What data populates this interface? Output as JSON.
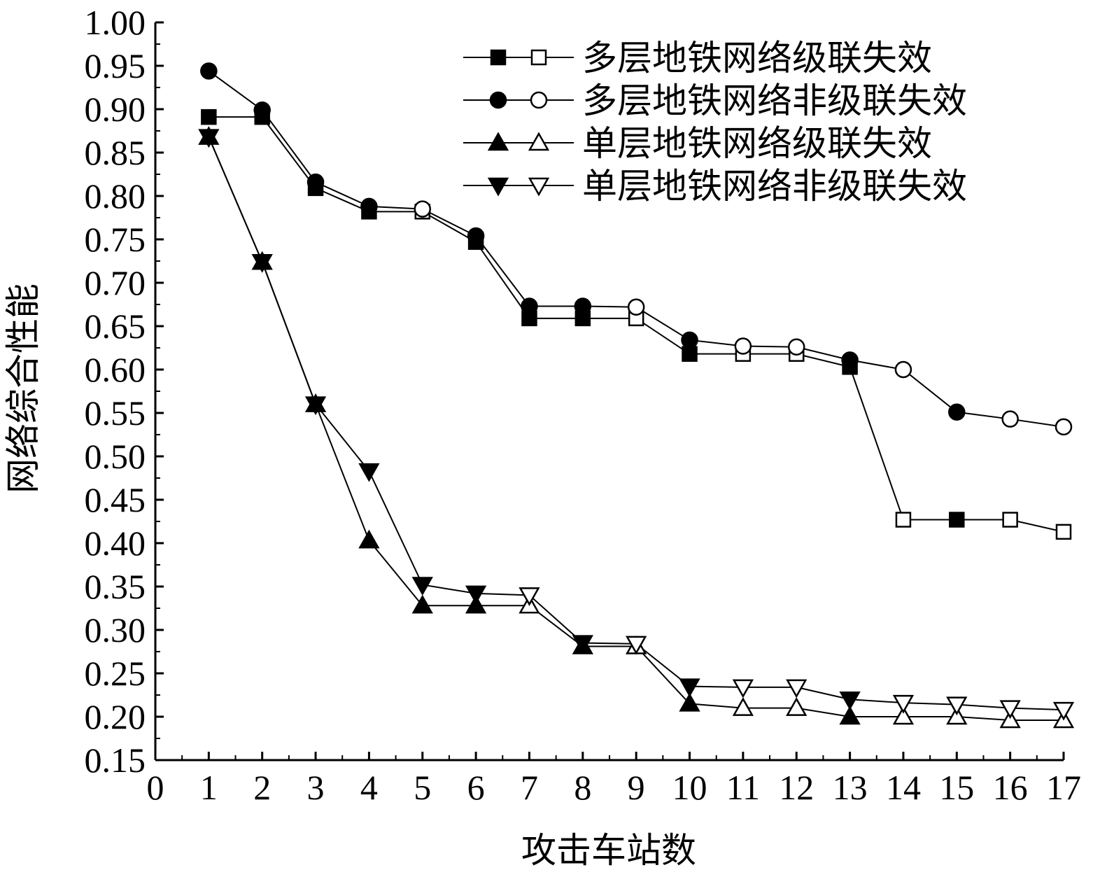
{
  "chart_data": {
    "type": "line",
    "title": "",
    "xlabel": "攻击车站数",
    "ylabel": "网络综合性能",
    "xlim": [
      0,
      17
    ],
    "ylim": [
      0.15,
      1.0
    ],
    "x_ticks": [
      "0",
      "1",
      "2",
      "3",
      "4",
      "5",
      "6",
      "7",
      "8",
      "9",
      "10",
      "11",
      "12",
      "13",
      "14",
      "15",
      "16",
      "17"
    ],
    "y_ticks": [
      "0.15",
      "0.20",
      "0.25",
      "0.30",
      "0.35",
      "0.40",
      "0.45",
      "0.50",
      "0.55",
      "0.60",
      "0.65",
      "0.70",
      "0.75",
      "0.80",
      "0.85",
      "0.90",
      "0.95",
      "1.00"
    ],
    "grid": false,
    "legend_position": "top-right",
    "x": [
      1,
      2,
      3,
      4,
      5,
      6,
      7,
      8,
      9,
      10,
      11,
      12,
      13,
      14,
      15,
      16,
      17
    ],
    "series": [
      {
        "name": "多层地铁网络级联失效",
        "marker": "square",
        "values": [
          0.891,
          0.891,
          0.809,
          0.782,
          0.782,
          0.747,
          0.659,
          0.659,
          0.659,
          0.618,
          0.618,
          0.618,
          0.603,
          0.427,
          0.427,
          0.427,
          0.413
        ],
        "filled": [
          true,
          true,
          true,
          true,
          false,
          true,
          true,
          true,
          false,
          true,
          false,
          false,
          true,
          false,
          true,
          false,
          false
        ]
      },
      {
        "name": "多层地铁网络非级联失效",
        "marker": "circle",
        "values": [
          0.944,
          0.899,
          0.816,
          0.788,
          0.785,
          0.754,
          0.673,
          0.673,
          0.672,
          0.634,
          0.627,
          0.626,
          0.611,
          0.6,
          0.551,
          0.543,
          0.534
        ],
        "filled": [
          true,
          true,
          true,
          true,
          false,
          true,
          true,
          true,
          false,
          true,
          false,
          false,
          true,
          false,
          true,
          false,
          false
        ]
      },
      {
        "name": "单层地铁网络级联失效",
        "marker": "triangle-up",
        "values": [
          0.868,
          0.724,
          0.56,
          0.403,
          0.328,
          0.328,
          0.328,
          0.281,
          0.281,
          0.215,
          0.21,
          0.21,
          0.2,
          0.2,
          0.2,
          0.196,
          0.196
        ],
        "filled": [
          true,
          true,
          true,
          true,
          true,
          true,
          false,
          true,
          false,
          true,
          false,
          false,
          true,
          false,
          false,
          false,
          false
        ]
      },
      {
        "name": "单层地铁网络非级联失效",
        "marker": "triangle-down",
        "values": [
          0.868,
          0.724,
          0.56,
          0.483,
          0.352,
          0.342,
          0.34,
          0.285,
          0.284,
          0.235,
          0.234,
          0.234,
          0.22,
          0.216,
          0.214,
          0.21,
          0.208
        ],
        "filled": [
          true,
          true,
          true,
          true,
          true,
          true,
          false,
          true,
          false,
          true,
          false,
          false,
          true,
          false,
          false,
          false,
          false
        ]
      }
    ]
  }
}
